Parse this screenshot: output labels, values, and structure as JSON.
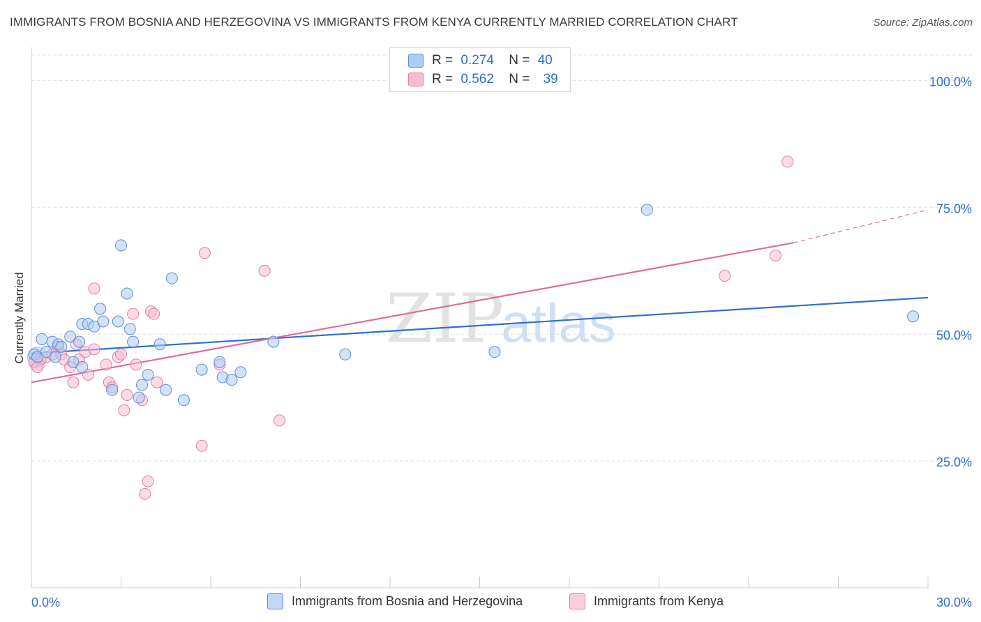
{
  "title": "IMMIGRANTS FROM BOSNIA AND HERZEGOVINA VS IMMIGRANTS FROM KENYA CURRENTLY MARRIED CORRELATION CHART",
  "source": "Source: ZipAtlas.com",
  "watermark": {
    "zip": "ZIP",
    "atlas": "atlas"
  },
  "legend_top": {
    "rows": [
      {
        "r_label": "R =",
        "r_value": "0.274",
        "n_label": "N =",
        "n_value": "40"
      },
      {
        "r_label": "R =",
        "r_value": "0.562",
        "n_label": "N =",
        "n_value": "39"
      }
    ]
  },
  "colors": {
    "blue_fill": "#aecbf3",
    "blue_stroke": "#5b8fd9",
    "blue_line": "#2e6fd1",
    "pink_fill": "#f7bdd0",
    "pink_stroke": "#e07fa2",
    "pink_line": "#e06c98",
    "tick_label": "#2e6fd1",
    "grid": "#dcdcdc"
  },
  "chart_data": {
    "type": "scatter",
    "xlabel": "",
    "ylabel": "Currently Married",
    "xlim": [
      0,
      30
    ],
    "ylim": [
      0,
      105
    ],
    "x_tick_labels": [
      {
        "value": 0,
        "label": "0.0%"
      },
      {
        "value": 30,
        "label": "30.0%"
      }
    ],
    "y_tick_labels": [
      {
        "value": 25,
        "label": "25.0%"
      },
      {
        "value": 50,
        "label": "50.0%"
      },
      {
        "value": 75,
        "label": "75.0%"
      },
      {
        "value": 100,
        "label": "100.0%"
      }
    ],
    "grid": true,
    "series": [
      {
        "name": "Immigrants from Bosnia and Herzegovina",
        "color": "#5b8fd9",
        "R": 0.274,
        "N": 40,
        "trend": {
          "x": [
            0,
            30
          ],
          "y": [
            46.2,
            57.2
          ]
        },
        "points": [
          [
            0.1,
            46.0
          ],
          [
            0.2,
            45.5
          ],
          [
            0.35,
            49.0
          ],
          [
            0.5,
            46.5
          ],
          [
            0.7,
            48.5
          ],
          [
            0.8,
            45.5
          ],
          [
            0.9,
            48.0
          ],
          [
            1.0,
            47.5
          ],
          [
            1.3,
            49.5
          ],
          [
            1.4,
            44.5
          ],
          [
            1.6,
            48.5
          ],
          [
            1.7,
            43.5
          ],
          [
            1.7,
            52.0
          ],
          [
            1.9,
            52.0
          ],
          [
            2.1,
            51.5
          ],
          [
            2.3,
            55.0
          ],
          [
            2.4,
            52.5
          ],
          [
            2.7,
            39.0
          ],
          [
            2.9,
            52.5
          ],
          [
            3.0,
            67.5
          ],
          [
            3.2,
            58.0
          ],
          [
            3.3,
            51.0
          ],
          [
            3.4,
            48.5
          ],
          [
            3.6,
            37.5
          ],
          [
            3.7,
            40.0
          ],
          [
            3.9,
            42.0
          ],
          [
            4.3,
            48.0
          ],
          [
            4.5,
            39.0
          ],
          [
            4.7,
            61.0
          ],
          [
            5.1,
            37.0
          ],
          [
            5.7,
            43.0
          ],
          [
            6.3,
            44.5
          ],
          [
            6.4,
            41.5
          ],
          [
            6.7,
            41.0
          ],
          [
            7.0,
            42.5
          ],
          [
            8.1,
            48.5
          ],
          [
            10.5,
            46.0
          ],
          [
            15.5,
            46.5
          ],
          [
            20.6,
            74.5
          ],
          [
            29.5,
            53.5
          ]
        ]
      },
      {
        "name": "Immigrants from Kenya",
        "color": "#e07fa2",
        "R": 0.562,
        "N": 39,
        "trend": {
          "x": [
            0,
            25.5
          ],
          "y": [
            40.5,
            68.0
          ]
        },
        "trend_dashed": {
          "x": [
            25.5,
            30
          ],
          "y": [
            68.0,
            74.5
          ]
        },
        "points": [
          [
            0.1,
            44.5
          ],
          [
            0.3,
            45.0
          ],
          [
            0.5,
            45.5
          ],
          [
            0.7,
            46.0
          ],
          [
            0.9,
            47.5
          ],
          [
            1.0,
            46.0
          ],
          [
            1.1,
            45.0
          ],
          [
            1.3,
            43.5
          ],
          [
            1.4,
            40.5
          ],
          [
            1.6,
            45.0
          ],
          [
            1.8,
            46.5
          ],
          [
            1.9,
            42.0
          ],
          [
            2.1,
            47.0
          ],
          [
            2.1,
            59.0
          ],
          [
            2.5,
            44.0
          ],
          [
            2.6,
            40.5
          ],
          [
            2.7,
            39.5
          ],
          [
            2.9,
            45.5
          ],
          [
            3.0,
            46.0
          ],
          [
            3.1,
            35.0
          ],
          [
            3.2,
            38.0
          ],
          [
            3.4,
            54.0
          ],
          [
            3.5,
            44.0
          ],
          [
            3.7,
            37.0
          ],
          [
            3.8,
            18.5
          ],
          [
            3.9,
            21.0
          ],
          [
            4.0,
            54.5
          ],
          [
            4.1,
            54.0
          ],
          [
            4.2,
            40.5
          ],
          [
            5.7,
            28.0
          ],
          [
            5.8,
            66.0
          ],
          [
            6.3,
            44.0
          ],
          [
            7.8,
            62.5
          ],
          [
            8.3,
            33.0
          ],
          [
            23.2,
            61.5
          ],
          [
            24.9,
            65.5
          ],
          [
            25.3,
            84.0
          ],
          [
            0.2,
            43.5
          ],
          [
            1.5,
            48.0
          ]
        ]
      }
    ]
  },
  "legend_bottom": [
    {
      "label": "Immigrants from Bosnia and Herzegovina"
    },
    {
      "label": "Immigrants from Kenya"
    }
  ]
}
